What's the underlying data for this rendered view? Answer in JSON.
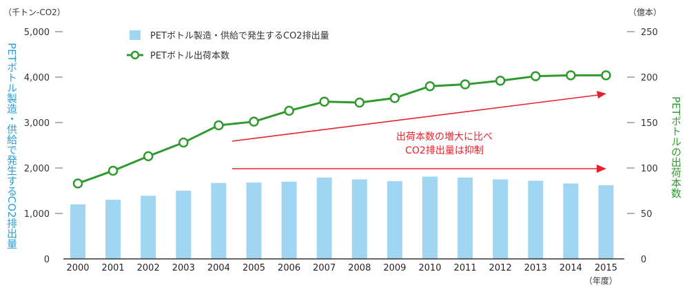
{
  "chart_data": {
    "type": "bar+line",
    "categories": [
      "2000",
      "2001",
      "2002",
      "2003",
      "2004",
      "2005",
      "2006",
      "2007",
      "2008",
      "2009",
      "2010",
      "2011",
      "2012",
      "2013",
      "2014",
      "2015"
    ],
    "series": [
      {
        "name": "PETボトル製造・供給で発生するCO2排出量",
        "type": "bar",
        "axis": "left",
        "color": "#a0d6f2",
        "values": [
          1200,
          1300,
          1390,
          1500,
          1670,
          1680,
          1700,
          1790,
          1750,
          1710,
          1810,
          1790,
          1750,
          1720,
          1660,
          1620
        ]
      },
      {
        "name": "PETボトル出荷本数",
        "type": "line",
        "axis": "right",
        "color": "#2e9a2e",
        "values": [
          83,
          97,
          113,
          128,
          147,
          151,
          163,
          173,
          172,
          177,
          190,
          192,
          196,
          201,
          202,
          202
        ]
      }
    ],
    "y_left": {
      "label": "PETボトル製造・供給で発生するCO2排出量",
      "unit": "（千トン-CO2）",
      "ylim": [
        0,
        5000
      ],
      "ticks": [
        "0",
        "1,000",
        "2,000",
        "3,000",
        "4,000",
        "5,000"
      ]
    },
    "y_right": {
      "label": "PETボトルの出荷本数",
      "unit": "（億本）",
      "ylim": [
        0,
        250
      ],
      "ticks": [
        "0",
        "50",
        "100",
        "150",
        "200",
        "250"
      ]
    },
    "x_unit": "（年度）",
    "legend_placement": "top",
    "grid": false,
    "annotation": {
      "line1": "出荷本数の増大に比べ",
      "line2": "CO2排出量は抑制",
      "color": "#e8202a"
    }
  }
}
